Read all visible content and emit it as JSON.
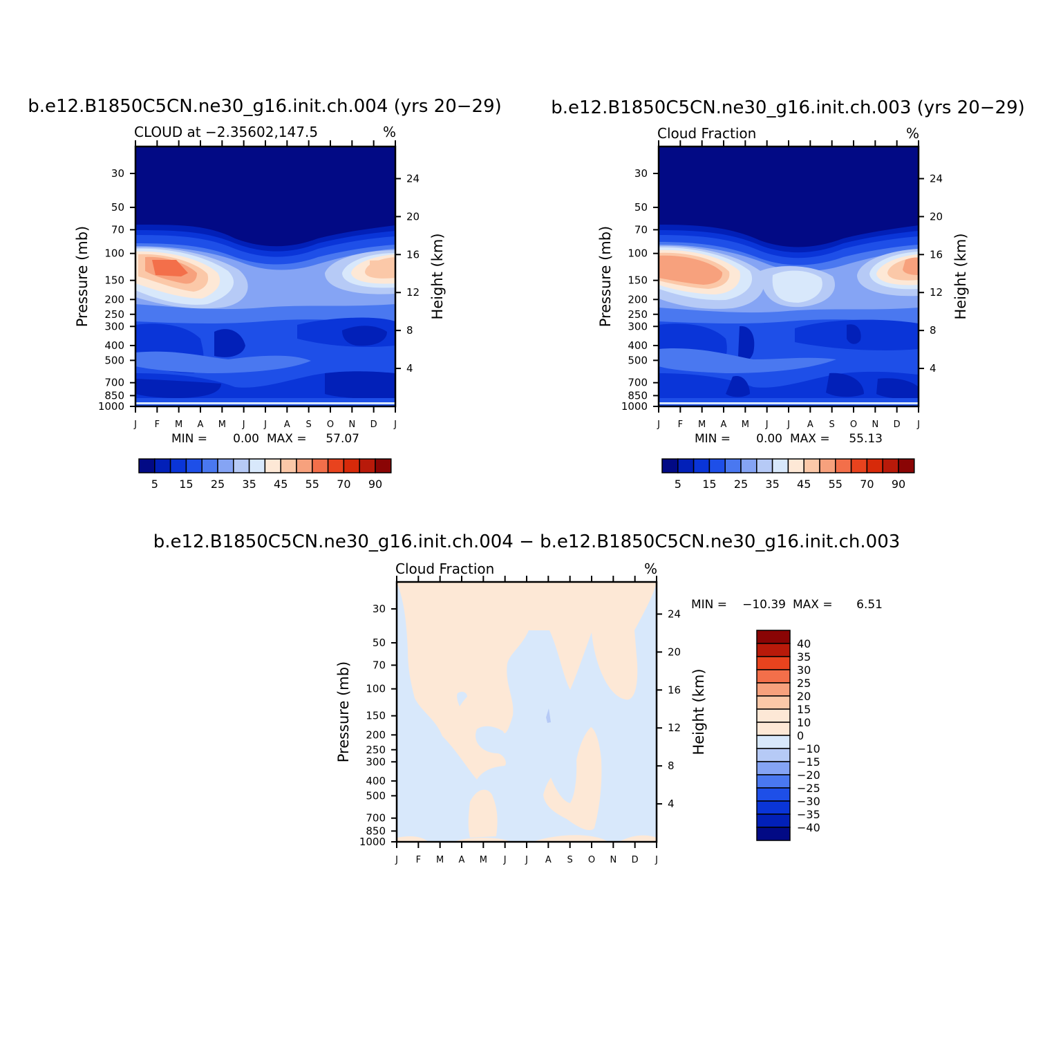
{
  "chart_data": [
    {
      "type": "heatmap",
      "subtype": "filled-contour",
      "title": "b.e12.B1850C5CN.ne30_g16.init.ch.004 (yrs 20−29)",
      "left_label": "CLOUD at −2.35602,147.5",
      "units": "%",
      "ylabel": "Pressure (mb)",
      "y2label": "Height (km)",
      "x_ticks": [
        "J",
        "F",
        "M",
        "A",
        "M",
        "J",
        "J",
        "A",
        "S",
        "O",
        "N",
        "D",
        "J"
      ],
      "y_ticks": [
        30,
        50,
        70,
        100,
        150,
        200,
        250,
        300,
        400,
        500,
        700,
        850,
        1000
      ],
      "y_range": [
        20,
        1000
      ],
      "y2_ticks": [
        24,
        20,
        16,
        12,
        8,
        4
      ],
      "stats": {
        "min_label": "MIN =",
        "min": "0.00",
        "max_label": "MAX =",
        "max": "57.07"
      },
      "colorbar": {
        "orientation": "horizontal",
        "levels": [
          0,
          5,
          10,
          15,
          20,
          25,
          30,
          35,
          40,
          45,
          50,
          55,
          60,
          70,
          80,
          90
        ],
        "tick_labels": [
          "5",
          "15",
          "25",
          "35",
          "45",
          "55",
          "70",
          "90"
        ],
        "colors": [
          "#020a85",
          "#0220b8",
          "#0a35d8",
          "#1e4fe8",
          "#4a78f0",
          "#85a4f4",
          "#b6caf6",
          "#d8e8fb",
          "#fde8d6",
          "#fbc8a8",
          "#f7a17d",
          "#f36f4a",
          "#e8431e",
          "#d72a0a",
          "#b81a0a",
          "#8a0505"
        ]
      }
    },
    {
      "type": "heatmap",
      "subtype": "filled-contour",
      "title": "b.e12.B1850C5CN.ne30_g16.init.ch.003 (yrs 20−29)",
      "left_label": "Cloud Fraction",
      "units": "%",
      "ylabel": "Pressure (mb)",
      "y2label": "Height (km)",
      "x_ticks": [
        "J",
        "F",
        "M",
        "A",
        "M",
        "J",
        "J",
        "A",
        "S",
        "O",
        "N",
        "D",
        "J"
      ],
      "y_ticks": [
        30,
        50,
        70,
        100,
        150,
        200,
        250,
        300,
        400,
        500,
        700,
        850,
        1000
      ],
      "y_range": [
        20,
        1000
      ],
      "y2_ticks": [
        24,
        20,
        16,
        12,
        8,
        4
      ],
      "stats": {
        "min_label": "MIN =",
        "min": "0.00",
        "max_label": "MAX =",
        "max": "55.13"
      },
      "colorbar": {
        "orientation": "horizontal",
        "levels": [
          0,
          5,
          10,
          15,
          20,
          25,
          30,
          35,
          40,
          45,
          50,
          55,
          60,
          70,
          80,
          90
        ],
        "tick_labels": [
          "5",
          "15",
          "25",
          "35",
          "45",
          "55",
          "70",
          "90"
        ],
        "colors": [
          "#020a85",
          "#0220b8",
          "#0a35d8",
          "#1e4fe8",
          "#4a78f0",
          "#85a4f4",
          "#b6caf6",
          "#d8e8fb",
          "#fde8d6",
          "#fbc8a8",
          "#f7a17d",
          "#f36f4a",
          "#e8431e",
          "#d72a0a",
          "#b81a0a",
          "#8a0505"
        ]
      }
    },
    {
      "type": "heatmap",
      "subtype": "filled-contour-difference",
      "title": "b.e12.B1850C5CN.ne30_g16.init.ch.004 − b.e12.B1850C5CN.ne30_g16.init.ch.003",
      "left_label": "Cloud Fraction",
      "units": "%",
      "ylabel": "Pressure (mb)",
      "y2label": "Height (km)",
      "x_ticks": [
        "J",
        "F",
        "M",
        "A",
        "M",
        "J",
        "J",
        "A",
        "S",
        "O",
        "N",
        "D",
        "J"
      ],
      "y_ticks": [
        30,
        50,
        70,
        100,
        150,
        200,
        250,
        300,
        400,
        500,
        700,
        850,
        1000
      ],
      "y_range": [
        20,
        1000
      ],
      "y2_ticks": [
        24,
        20,
        16,
        12,
        8,
        4
      ],
      "stats": {
        "min_label": "MIN =",
        "min": "−10.39",
        "max_label": "MAX =",
        "max": "6.51"
      },
      "colorbar": {
        "orientation": "vertical",
        "levels": [
          -40,
          -35,
          -30,
          -25,
          -20,
          -15,
          -10,
          0,
          10,
          15,
          20,
          25,
          30,
          35,
          40
        ],
        "tick_labels": [
          "40",
          "35",
          "30",
          "25",
          "20",
          "15",
          "10",
          "0",
          "−10",
          "−15",
          "−20",
          "−25",
          "−30",
          "−35",
          "−40"
        ],
        "colors_top_to_bottom": [
          "#8a0505",
          "#b81a0a",
          "#e8431e",
          "#f36f4a",
          "#f7a17d",
          "#fbc8a8",
          "#fde8d6",
          "#fde8d6",
          "#d8e8fb",
          "#b6caf6",
          "#85a4f4",
          "#4a78f0",
          "#1e4fe8",
          "#0a35d8",
          "#0220b8",
          "#020a85"
        ]
      }
    }
  ]
}
